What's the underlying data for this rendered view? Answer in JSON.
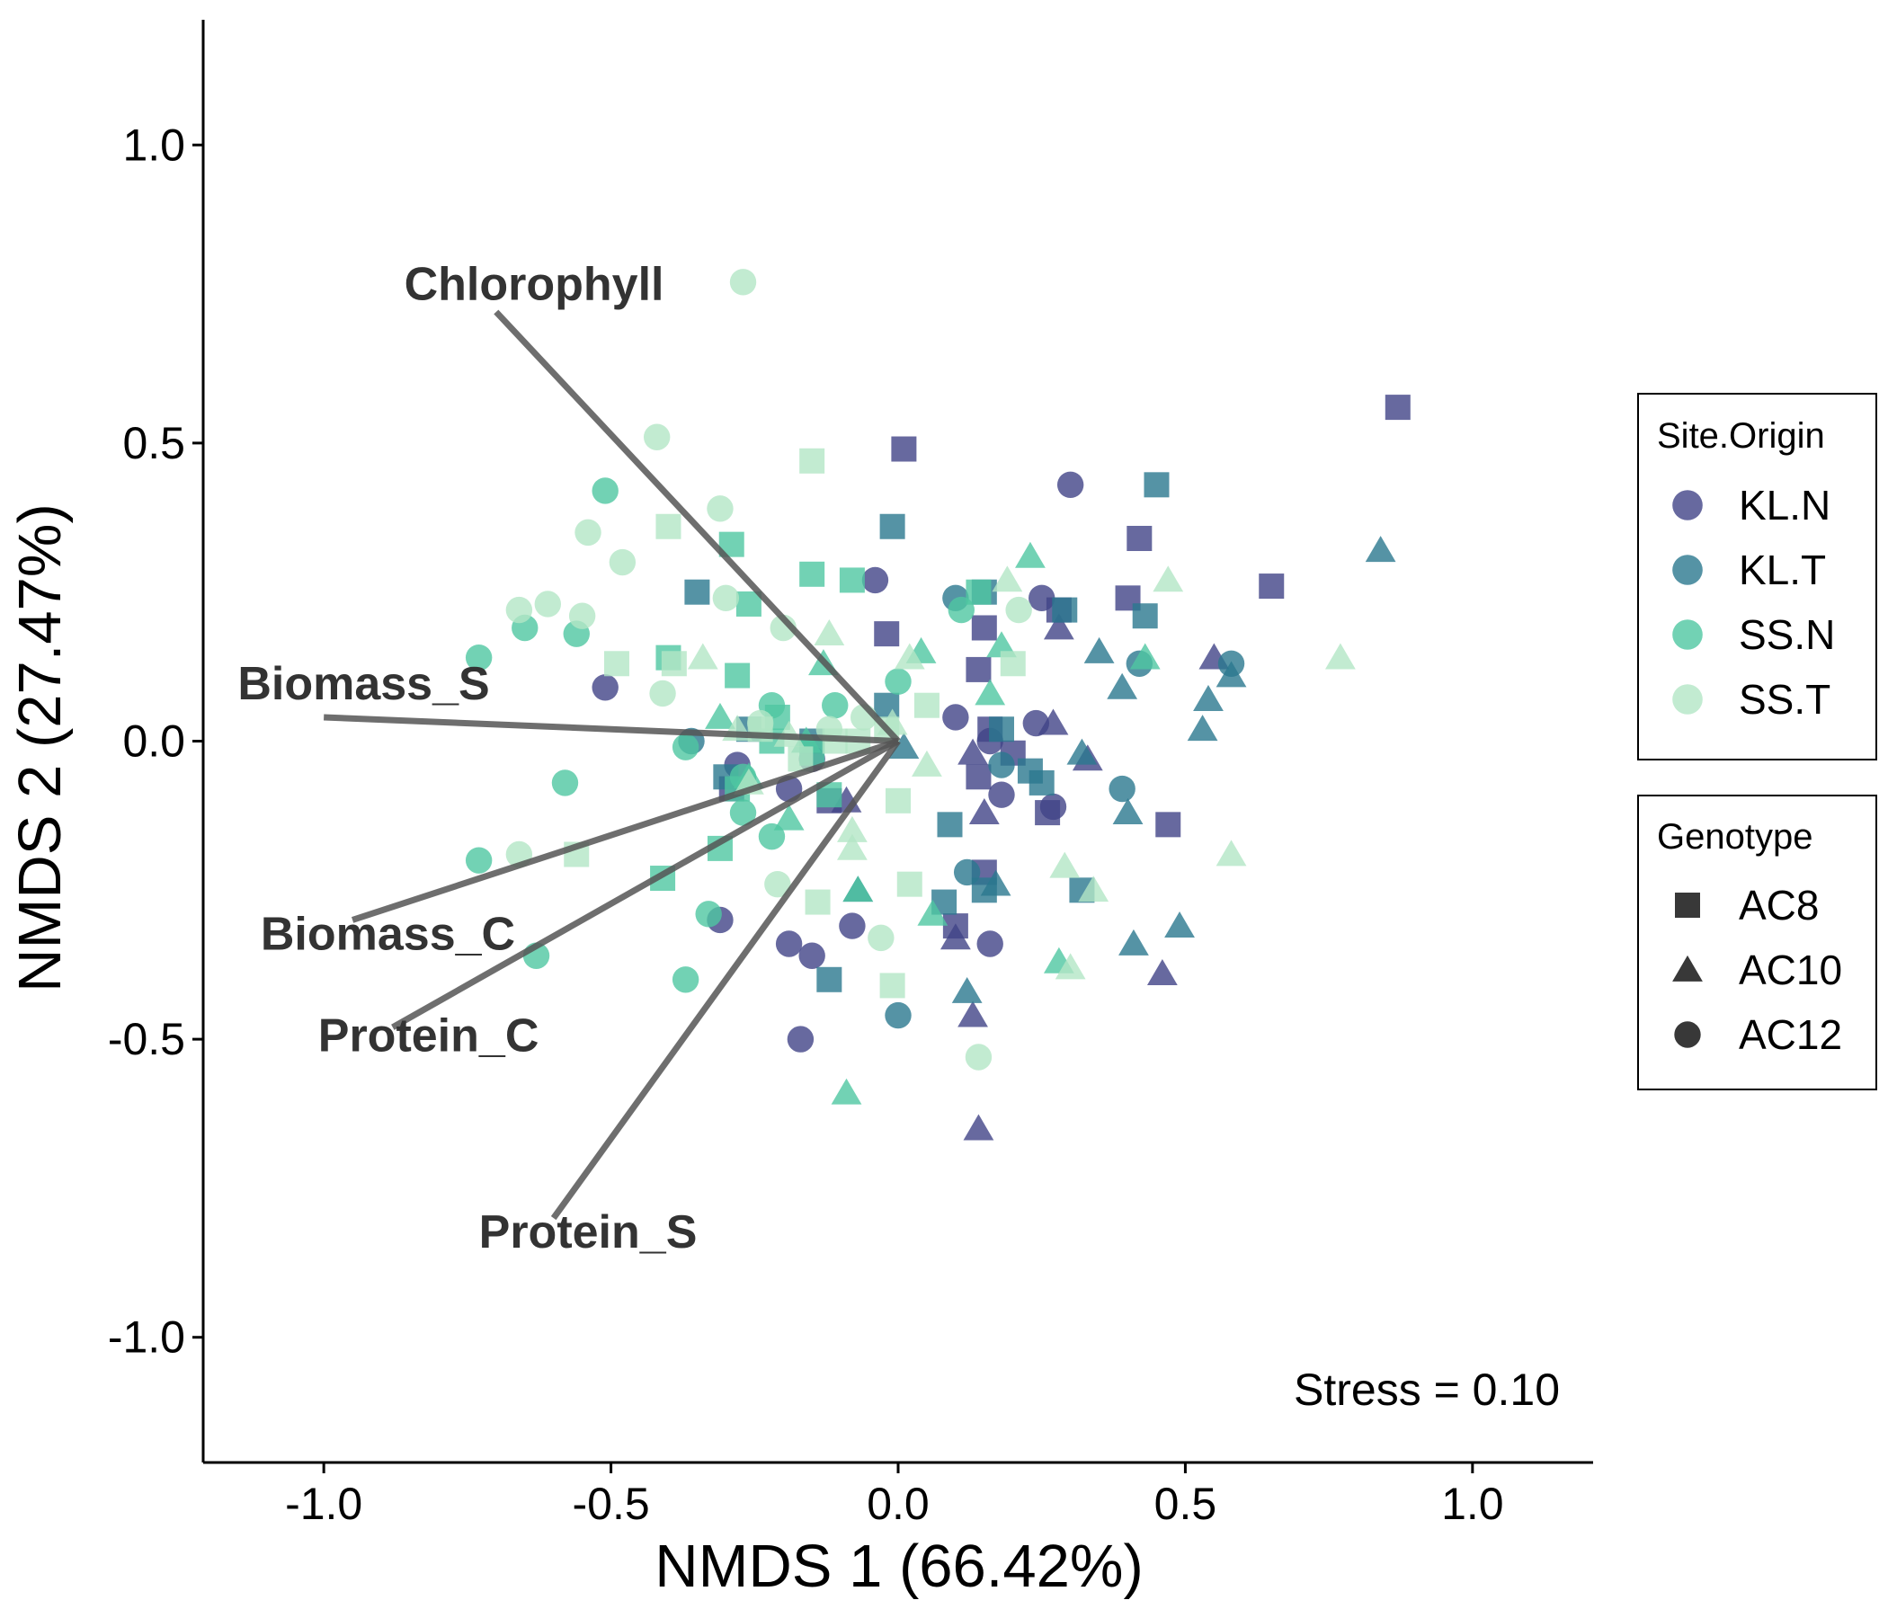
{
  "chart_data": {
    "type": "scatter",
    "xlabel": "NMDS 1 (66.42%)",
    "ylabel": "NMDS 2 (27.47%)",
    "xlim": [
      -1.21,
      1.21
    ],
    "ylim": [
      -1.21,
      1.21
    ],
    "xticks": [
      "-1.0",
      "-0.5",
      "0.0",
      "0.5",
      "1.0"
    ],
    "yticks": [
      "-1.0",
      "-0.5",
      "0.0",
      "0.5",
      "1.0"
    ],
    "grid": false,
    "annotation": "Stress = 0.10",
    "vectors": [
      {
        "label": "Chlorophyll",
        "x": -0.7,
        "y": 0.72,
        "label_x": -0.86,
        "label_y": 0.74
      },
      {
        "label": "Biomass_S",
        "x": -1.0,
        "y": 0.04,
        "label_x": -1.15,
        "label_y": 0.07
      },
      {
        "label": "Biomass_C",
        "x": -0.95,
        "y": -0.3,
        "label_x": -1.11,
        "label_y": -0.35
      },
      {
        "label": "Protein_C",
        "x": -0.88,
        "y": -0.48,
        "label_x": -1.01,
        "label_y": -0.52
      },
      {
        "label": "Protein_S",
        "x": -0.6,
        "y": -0.8,
        "label_x": -0.73,
        "label_y": -0.85
      }
    ],
    "legend": {
      "position": "right",
      "color_title": "Site.Origin",
      "shape_title": "Genotype",
      "colors": [
        {
          "name": "KL.N",
          "color": "#414487"
        },
        {
          "name": "KL.T",
          "color": "#2A788E"
        },
        {
          "name": "SS.N",
          "color": "#4FC7A1"
        },
        {
          "name": "SS.T",
          "color": "#B3E6C6"
        }
      ],
      "shapes": [
        {
          "name": "AC8",
          "shape": "square"
        },
        {
          "name": "AC10",
          "shape": "triangle"
        },
        {
          "name": "AC12",
          "shape": "circle"
        }
      ]
    },
    "series": [
      {
        "group": "KL.N",
        "genotype": "AC8",
        "points": [
          [
            0.01,
            0.49
          ],
          [
            0.87,
            0.56
          ],
          [
            0.42,
            0.34
          ],
          [
            0.65,
            0.26
          ],
          [
            0.4,
            0.24
          ],
          [
            0.28,
            0.22
          ],
          [
            0.15,
            0.19
          ],
          [
            -0.02,
            0.18
          ],
          [
            0.14,
            0.12
          ],
          [
            0.16,
            0.02
          ],
          [
            0.14,
            -0.06
          ],
          [
            0.26,
            -0.12
          ],
          [
            0.47,
            -0.14
          ],
          [
            -0.29,
            -0.08
          ],
          [
            0.1,
            -0.31
          ],
          [
            0.15,
            -0.22
          ],
          [
            -0.12,
            -0.1
          ],
          [
            0.2,
            -0.02
          ]
        ]
      },
      {
        "group": "KL.N",
        "genotype": "AC10",
        "points": [
          [
            0.28,
            0.19
          ],
          [
            0.55,
            0.14
          ],
          [
            0.13,
            -0.02
          ],
          [
            0.33,
            -0.03
          ],
          [
            0.15,
            -0.12
          ],
          [
            0.1,
            -0.33
          ],
          [
            0.13,
            -0.46
          ],
          [
            0.14,
            -0.65
          ],
          [
            0.46,
            -0.39
          ],
          [
            -0.09,
            -0.1
          ],
          [
            0.27,
            0.03
          ]
        ]
      },
      {
        "group": "KL.N",
        "genotype": "AC12",
        "points": [
          [
            0.3,
            0.43
          ],
          [
            -0.04,
            0.27
          ],
          [
            0.25,
            0.24
          ],
          [
            -0.51,
            0.09
          ],
          [
            0.1,
            0.04
          ],
          [
            0.24,
            0.03
          ],
          [
            -0.28,
            -0.04
          ],
          [
            -0.19,
            -0.08
          ],
          [
            -0.15,
            -0.03
          ],
          [
            -0.31,
            -0.3
          ],
          [
            -0.19,
            -0.34
          ],
          [
            -0.15,
            -0.36
          ],
          [
            -0.08,
            -0.31
          ],
          [
            0.16,
            -0.34
          ],
          [
            -0.17,
            -0.5
          ],
          [
            0.18,
            -0.09
          ],
          [
            0.27,
            -0.11
          ],
          [
            0.16,
            0.0
          ]
        ]
      },
      {
        "group": "KL.T",
        "genotype": "AC8",
        "points": [
          [
            0.45,
            0.43
          ],
          [
            -0.01,
            0.36
          ],
          [
            -0.35,
            0.25
          ],
          [
            0.29,
            0.22
          ],
          [
            0.43,
            0.21
          ],
          [
            0.15,
            0.25
          ],
          [
            -0.15,
            0.0
          ],
          [
            0.23,
            -0.05
          ],
          [
            -0.02,
            0.06
          ],
          [
            0.18,
            0.02
          ],
          [
            0.09,
            -0.14
          ],
          [
            0.32,
            -0.25
          ],
          [
            0.15,
            -0.25
          ],
          [
            0.08,
            -0.27
          ],
          [
            -0.12,
            -0.4
          ],
          [
            -0.3,
            -0.06
          ],
          [
            0.25,
            -0.07
          ],
          [
            -0.26,
            0.02
          ]
        ]
      },
      {
        "group": "KL.T",
        "genotype": "AC10",
        "points": [
          [
            0.84,
            0.32
          ],
          [
            0.58,
            0.11
          ],
          [
            0.54,
            0.07
          ],
          [
            0.39,
            0.09
          ],
          [
            0.35,
            0.15
          ],
          [
            0.53,
            0.02
          ],
          [
            0.32,
            -0.02
          ],
          [
            0.4,
            -0.12
          ],
          [
            0.49,
            -0.31
          ],
          [
            0.41,
            -0.34
          ],
          [
            0.12,
            -0.42
          ],
          [
            0.17,
            -0.24
          ],
          [
            -0.07,
            -0.25
          ],
          [
            0.01,
            -0.01
          ]
        ]
      },
      {
        "group": "KL.T",
        "genotype": "AC12",
        "points": [
          [
            0.1,
            0.24
          ],
          [
            0.58,
            0.13
          ],
          [
            0.42,
            0.13
          ],
          [
            0.39,
            -0.08
          ],
          [
            0.18,
            -0.04
          ],
          [
            0.12,
            -0.22
          ],
          [
            0.0,
            -0.46
          ],
          [
            -0.36,
            0.0
          ]
        ]
      },
      {
        "group": "SS.N",
        "genotype": "AC8",
        "points": [
          [
            -0.29,
            0.33
          ],
          [
            -0.15,
            0.28
          ],
          [
            -0.08,
            0.27
          ],
          [
            -0.26,
            0.23
          ],
          [
            -0.28,
            0.11
          ],
          [
            -0.4,
            0.14
          ],
          [
            -0.22,
            0.0
          ],
          [
            -0.15,
            -0.02
          ],
          [
            -0.12,
            -0.09
          ],
          [
            -0.31,
            -0.18
          ],
          [
            -0.41,
            -0.23
          ],
          [
            0.14,
            0.25
          ],
          [
            -0.28,
            -0.08
          ],
          [
            -0.21,
            0.04
          ]
        ]
      },
      {
        "group": "SS.N",
        "genotype": "AC10",
        "points": [
          [
            0.23,
            0.31
          ],
          [
            0.04,
            0.15
          ],
          [
            -0.13,
            0.13
          ],
          [
            -0.31,
            0.04
          ],
          [
            -0.26,
            -0.06
          ],
          [
            0.06,
            -0.29
          ],
          [
            0.16,
            0.08
          ],
          [
            0.18,
            0.16
          ],
          [
            0.43,
            0.14
          ],
          [
            -0.09,
            -0.59
          ],
          [
            0.28,
            -0.37
          ],
          [
            -0.07,
            -0.25
          ],
          [
            -0.16,
            0.0
          ],
          [
            -0.19,
            -0.13
          ]
        ]
      },
      {
        "group": "SS.N",
        "genotype": "AC12",
        "points": [
          [
            -0.51,
            0.42
          ],
          [
            -0.56,
            0.18
          ],
          [
            -0.65,
            0.19
          ],
          [
            -0.73,
            0.14
          ],
          [
            -0.58,
            -0.07
          ],
          [
            -0.73,
            -0.2
          ],
          [
            -0.63,
            -0.36
          ],
          [
            -0.37,
            -0.4
          ],
          [
            -0.33,
            -0.29
          ],
          [
            -0.22,
            -0.16
          ],
          [
            -0.37,
            -0.01
          ],
          [
            -0.22,
            0.06
          ],
          [
            -0.11,
            0.06
          ],
          [
            0.0,
            0.1
          ],
          [
            0.11,
            0.22
          ],
          [
            -0.27,
            -0.06
          ],
          [
            -0.27,
            -0.12
          ]
        ]
      },
      {
        "group": "SS.T",
        "genotype": "AC8",
        "points": [
          [
            -0.15,
            0.47
          ],
          [
            -0.4,
            0.36
          ],
          [
            -0.49,
            0.13
          ],
          [
            -0.39,
            0.13
          ],
          [
            -0.24,
            0.02
          ],
          [
            -0.17,
            -0.03
          ],
          [
            -0.11,
            0.0
          ],
          [
            0.05,
            0.06
          ],
          [
            0.0,
            -0.1
          ],
          [
            0.02,
            -0.24
          ],
          [
            -0.14,
            -0.27
          ],
          [
            -0.56,
            -0.19
          ],
          [
            -0.07,
            0.0
          ],
          [
            0.2,
            0.13
          ],
          [
            -0.02,
            0.02
          ],
          [
            -0.01,
            -0.41
          ]
        ]
      },
      {
        "group": "SS.T",
        "genotype": "AC10",
        "points": [
          [
            0.47,
            0.27
          ],
          [
            0.19,
            0.27
          ],
          [
            0.77,
            0.14
          ],
          [
            -0.12,
            0.18
          ],
          [
            -0.34,
            0.14
          ],
          [
            -0.28,
            0.02
          ],
          [
            -0.19,
            0.01
          ],
          [
            -0.26,
            -0.07
          ],
          [
            -0.08,
            -0.15
          ],
          [
            -0.08,
            -0.18
          ],
          [
            0.05,
            -0.04
          ],
          [
            0.58,
            -0.19
          ],
          [
            0.29,
            -0.21
          ],
          [
            0.34,
            -0.25
          ],
          [
            0.3,
            -0.38
          ],
          [
            0.02,
            0.14
          ],
          [
            -0.01,
            0.03
          ]
        ]
      },
      {
        "group": "SS.T",
        "genotype": "AC12",
        "points": [
          [
            -0.27,
            0.77
          ],
          [
            -0.42,
            0.51
          ],
          [
            -0.31,
            0.39
          ],
          [
            -0.54,
            0.35
          ],
          [
            -0.48,
            0.3
          ],
          [
            -0.3,
            0.24
          ],
          [
            -0.61,
            0.23
          ],
          [
            -0.66,
            0.22
          ],
          [
            -0.55,
            0.21
          ],
          [
            -0.2,
            0.19
          ],
          [
            -0.41,
            0.08
          ],
          [
            -0.24,
            0.03
          ],
          [
            -0.12,
            0.02
          ],
          [
            -0.66,
            -0.19
          ],
          [
            -0.21,
            -0.24
          ],
          [
            -0.03,
            -0.33
          ],
          [
            0.14,
            -0.53
          ],
          [
            0.21,
            0.22
          ],
          [
            -0.06,
            0.04
          ]
        ]
      }
    ]
  }
}
